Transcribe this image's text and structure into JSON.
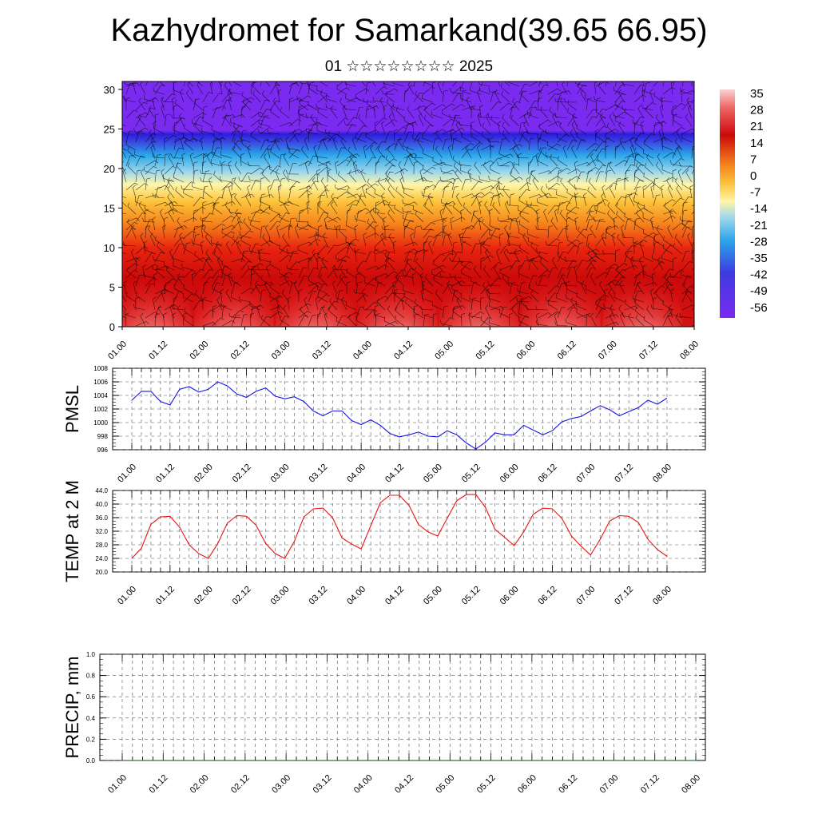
{
  "title": "Kazhydromet for Samarkand(39.65 66.95)",
  "subtitle": "01 ☆☆☆☆☆☆☆☆ 2025",
  "colors": {
    "pmsl_line": "#1414e6",
    "temp_line": "#e61414",
    "precip_line": "#005000"
  },
  "chart_data": [
    {
      "type": "heatmap",
      "description_kind": "vertical cross-section of temperature with wind barbs",
      "x_tick_labels": [
        "01.00",
        "01.12",
        "02.00",
        "02.12",
        "03.00",
        "03.12",
        "04.00",
        "04.12",
        "05.00",
        "05.12",
        "06.00",
        "06.12",
        "07.00",
        "07.12",
        "08.00"
      ],
      "y_tick_labels": [
        "0",
        "5",
        "10",
        "15",
        "20",
        "25",
        "30"
      ],
      "ylim": [
        0,
        31
      ],
      "colorbar_labels": [
        "35",
        "28",
        "21",
        "14",
        "7",
        "0",
        "-7",
        "-14",
        "-21",
        "-28",
        "-35",
        "-42",
        "-49",
        "-56"
      ],
      "colorbar_range": [
        -63,
        42
      ],
      "overlay": "wind barbs"
    },
    {
      "type": "line",
      "ylabel": "PMSL",
      "x_tick_labels": [
        "01.00",
        "01.12",
        "02.00",
        "02.12",
        "03.00",
        "03.12",
        "04.00",
        "04.12",
        "05.00",
        "05.12",
        "06.00",
        "06.12",
        "07.00",
        "07.12",
        "08.00"
      ],
      "y_tick_labels": [
        "996",
        "998",
        "1000",
        "1002",
        "1004",
        "1006",
        "1008"
      ],
      "ylim": [
        996,
        1008
      ],
      "grid": true,
      "x_step_hours": 3,
      "values": [
        1003.3,
        1004.6,
        1004.6,
        1003.1,
        1002.6,
        1004.9,
        1005.3,
        1004.5,
        1004.9,
        1006.0,
        1005.4,
        1004.2,
        1003.7,
        1004.6,
        1005.1,
        1003.9,
        1003.5,
        1003.8,
        1003.1,
        1001.7,
        1001.0,
        1001.7,
        1001.7,
        1000.3,
        999.7,
        1000.4,
        999.6,
        998.4,
        997.9,
        998.2,
        998.6,
        998.0,
        997.9,
        998.8,
        998.2,
        997.0,
        996.1,
        997.1,
        998.5,
        998.2,
        998.2,
        999.6,
        998.9,
        998.2,
        998.8,
        1000.1,
        1000.6,
        1000.9,
        1001.7,
        1002.5,
        1001.9,
        1001.0,
        1001.6,
        1002.2,
        1003.3,
        1002.7,
        1003.6
      ]
    },
    {
      "type": "line",
      "ylabel": "TEMP at 2 M",
      "x_tick_labels": [
        "01.00",
        "01.12",
        "02.00",
        "02.12",
        "03.00",
        "03.12",
        "04.00",
        "04.12",
        "05.00",
        "05.12",
        "06.00",
        "06.12",
        "07.00",
        "07.12",
        "08.00"
      ],
      "y_tick_labels": [
        "20.0",
        "24.0",
        "28.0",
        "32.0",
        "36.0",
        "40.0",
        "44.0"
      ],
      "ylim": [
        20,
        44
      ],
      "grid": true,
      "x_step_hours": 3,
      "values": [
        24.0,
        27.0,
        34.0,
        36.2,
        36.4,
        33.2,
        28.0,
        25.4,
        24.0,
        28.4,
        34.4,
        36.6,
        36.4,
        33.8,
        28.4,
        25.4,
        24.0,
        29.0,
        36.2,
        38.6,
        38.8,
        36.0,
        30.0,
        28.2,
        26.8,
        33.6,
        40.4,
        42.6,
        42.6,
        39.6,
        34.0,
        31.8,
        30.6,
        35.8,
        41.0,
        42.8,
        42.8,
        39.0,
        32.6,
        30.2,
        27.8,
        31.8,
        37.0,
        38.8,
        38.6,
        35.8,
        30.6,
        27.6,
        25.0,
        29.6,
        35.0,
        36.6,
        36.4,
        34.6,
        29.6,
        26.6,
        24.6
      ]
    },
    {
      "type": "line",
      "ylabel": "PRECIP, mm",
      "x_tick_labels": [
        "01.00",
        "01.12",
        "02.00",
        "02.12",
        "03.00",
        "03.12",
        "04.00",
        "04.12",
        "05.00",
        "05.12",
        "06.00",
        "06.12",
        "07.00",
        "07.12",
        "08.00"
      ],
      "y_tick_labels": [
        "0.0",
        "0.2",
        "0.4",
        "0.6",
        "0.8",
        "1.0"
      ],
      "ylim": [
        0,
        1
      ],
      "grid": true,
      "values": [
        0,
        0
      ]
    }
  ]
}
